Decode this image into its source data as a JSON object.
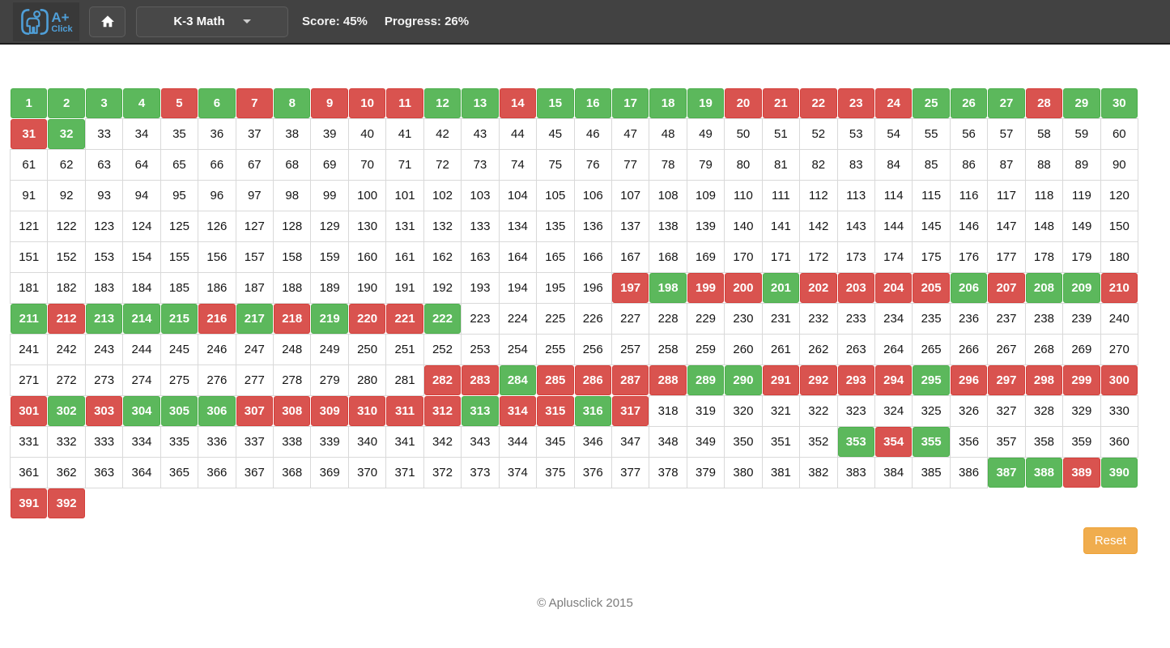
{
  "header": {
    "logo_main": "A+",
    "logo_sub": "Click",
    "category": "K-3 Math",
    "score": "Score: 45%",
    "progress": "Progress: 26%"
  },
  "colors": {
    "correct_green": "#5cb85c",
    "incorrect_red": "#d9534f",
    "reset_orange": "#f0ad4e",
    "header_gray": "#424242",
    "logo_blue": "#4f9fd8"
  },
  "grid": {
    "columns": 30,
    "rows": [
      {
        "numbers": [
          1,
          2,
          3,
          4,
          5,
          6,
          7,
          8,
          9,
          10,
          11,
          12,
          13,
          14,
          15,
          16,
          17,
          18,
          19,
          20,
          21,
          22,
          23,
          24,
          25,
          26,
          27,
          28,
          29,
          30
        ]
      },
      {
        "numbers": [
          31,
          32,
          33,
          34,
          35,
          36,
          37,
          38,
          39,
          40,
          41,
          42,
          43,
          44,
          45,
          46,
          47,
          48,
          49,
          50,
          51,
          52,
          53,
          54,
          55,
          56,
          57,
          58,
          59,
          60
        ]
      },
      {
        "numbers": [
          61,
          62,
          63,
          64,
          65,
          66,
          67,
          68,
          69,
          70,
          71,
          72,
          73,
          74,
          75,
          76,
          77,
          78,
          79,
          80,
          81,
          82,
          83,
          84,
          85,
          86,
          87,
          88,
          89,
          90
        ]
      },
      {
        "numbers": [
          91,
          92,
          93,
          94,
          95,
          96,
          97,
          98,
          99,
          100,
          101,
          102,
          103,
          104,
          105,
          106,
          107,
          108,
          109,
          110,
          111,
          112,
          113,
          114,
          115,
          116,
          117,
          118,
          119,
          120
        ]
      },
      {
        "numbers": [
          121,
          122,
          123,
          124,
          125,
          126,
          127,
          128,
          129,
          130,
          131,
          132,
          133,
          134,
          135,
          136,
          137,
          138,
          139,
          140,
          141,
          142,
          143,
          144,
          145,
          146,
          147,
          148,
          149,
          150
        ]
      },
      {
        "numbers": [
          151,
          152,
          153,
          154,
          155,
          156,
          157,
          158,
          159,
          160,
          161,
          162,
          163,
          164,
          165,
          166,
          167,
          168,
          169,
          170,
          171,
          172,
          173,
          174,
          175,
          176,
          177,
          178,
          179,
          180
        ]
      },
      {
        "numbers": [
          181,
          182,
          183,
          184,
          185,
          186,
          187,
          188,
          189,
          190,
          191,
          192,
          193,
          194,
          195,
          196,
          197,
          198,
          199,
          200,
          201,
          202,
          203,
          204,
          205,
          206,
          207,
          208,
          209,
          210
        ]
      },
      {
        "numbers": [
          211,
          212,
          213,
          214,
          215,
          216,
          217,
          218,
          219,
          220,
          221,
          222,
          223,
          224,
          225,
          226,
          227,
          228,
          229,
          230,
          231,
          232,
          233,
          234,
          235,
          236,
          237,
          238,
          239,
          240
        ]
      },
      {
        "numbers": [
          241,
          242,
          243,
          244,
          245,
          246,
          247,
          248,
          249,
          250,
          251,
          252,
          253,
          254,
          255,
          256,
          257,
          258,
          259,
          260,
          261,
          262,
          263,
          264,
          265,
          266,
          267,
          268,
          269,
          270
        ]
      },
      {
        "numbers": [
          271,
          272,
          273,
          274,
          275,
          276,
          277,
          278,
          279,
          280,
          281,
          282,
          283,
          284,
          285,
          286,
          287,
          288,
          289,
          290,
          291,
          292,
          293,
          294,
          295,
          296,
          297,
          298,
          299,
          300
        ]
      },
      {
        "numbers": [
          301,
          302,
          303,
          304,
          305,
          306,
          307,
          308,
          309,
          310,
          311,
          312,
          313,
          314,
          315,
          316,
          317,
          318,
          319,
          320,
          321,
          322,
          323,
          324,
          325,
          326,
          327,
          328,
          329,
          330
        ]
      },
      {
        "numbers": [
          331,
          332,
          333,
          334,
          335,
          336,
          337,
          338,
          339,
          340,
          341,
          342,
          343,
          344,
          345,
          346,
          347,
          348,
          349,
          350,
          351,
          352,
          353,
          354,
          355,
          356,
          357,
          358,
          359,
          360
        ]
      },
      {
        "numbers": [
          361,
          362,
          363,
          364,
          365,
          366,
          367,
          368,
          369,
          370,
          371,
          372,
          373,
          374,
          375,
          376,
          377,
          378,
          379,
          380,
          381,
          382,
          383,
          384,
          385,
          386,
          387,
          388,
          389,
          390
        ]
      },
      {
        "numbers": [
          391,
          392
        ]
      }
    ],
    "results": {
      "1": "correct",
      "2": "correct",
      "3": "correct",
      "4": "correct",
      "5": "incorrect",
      "6": "correct",
      "7": "incorrect",
      "8": "correct",
      "9": "incorrect",
      "10": "incorrect",
      "11": "incorrect",
      "12": "correct",
      "13": "correct",
      "14": "incorrect",
      "15": "correct",
      "16": "correct",
      "17": "correct",
      "18": "correct",
      "19": "correct",
      "20": "incorrect",
      "21": "incorrect",
      "22": "incorrect",
      "23": "incorrect",
      "24": "incorrect",
      "25": "correct",
      "26": "correct",
      "27": "correct",
      "28": "incorrect",
      "29": "correct",
      "30": "correct",
      "31": "incorrect",
      "32": "correct",
      "197": "incorrect",
      "198": "correct",
      "199": "incorrect",
      "200": "incorrect",
      "201": "correct",
      "202": "incorrect",
      "203": "incorrect",
      "204": "incorrect",
      "205": "incorrect",
      "206": "correct",
      "207": "incorrect",
      "208": "correct",
      "209": "correct",
      "210": "incorrect",
      "211": "correct",
      "212": "incorrect",
      "213": "correct",
      "214": "correct",
      "215": "correct",
      "216": "incorrect",
      "217": "correct",
      "218": "incorrect",
      "219": "correct",
      "220": "incorrect",
      "221": "incorrect",
      "222": "correct",
      "282": "incorrect",
      "283": "incorrect",
      "284": "correct",
      "285": "incorrect",
      "286": "incorrect",
      "287": "incorrect",
      "288": "incorrect",
      "289": "correct",
      "290": "correct",
      "291": "incorrect",
      "292": "incorrect",
      "293": "incorrect",
      "294": "incorrect",
      "295": "correct",
      "296": "incorrect",
      "297": "incorrect",
      "298": "incorrect",
      "299": "incorrect",
      "300": "incorrect",
      "301": "incorrect",
      "302": "correct",
      "303": "incorrect",
      "304": "correct",
      "305": "correct",
      "306": "correct",
      "307": "incorrect",
      "308": "incorrect",
      "309": "incorrect",
      "310": "incorrect",
      "311": "incorrect",
      "312": "incorrect",
      "313": "correct",
      "314": "incorrect",
      "315": "incorrect",
      "316": "correct",
      "317": "incorrect",
      "353": "correct",
      "354": "incorrect",
      "355": "correct",
      "387": "correct",
      "388": "correct",
      "389": "incorrect",
      "390": "correct",
      "391": "incorrect",
      "392": "incorrect"
    }
  },
  "reset_label": "Reset",
  "footer": {
    "copyright": "© Aplusclick 2015"
  }
}
